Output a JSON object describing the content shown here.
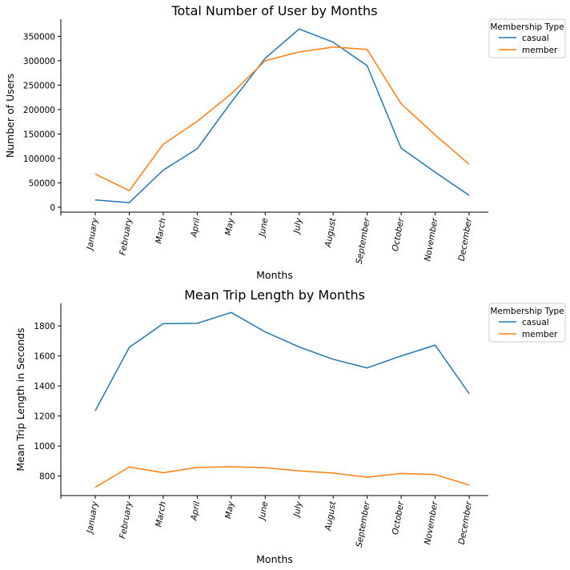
{
  "chart_data": [
    {
      "type": "line",
      "title": "Total Number of User by Months",
      "xlabel": "Months",
      "ylabel": "Number of Users",
      "categories": [
        "January",
        "February",
        "March",
        "April",
        "May",
        "June",
        "July",
        "August",
        "September",
        "October",
        "November",
        "December"
      ],
      "ylim": [
        -10000,
        385000
      ],
      "yticks": [
        0,
        50000,
        100000,
        150000,
        200000,
        250000,
        300000,
        350000
      ],
      "legend": {
        "title": "Membership Type",
        "placement": "outside-top-right"
      },
      "grid": false,
      "series": [
        {
          "name": "casual",
          "color": "#1f77b4",
          "values": [
            15000,
            9500,
            76000,
            120000,
            215000,
            305000,
            365000,
            338000,
            290000,
            121000,
            72000,
            24500
          ]
        },
        {
          "name": "member",
          "color": "#ff7f0e",
          "values": [
            68000,
            34000,
            129000,
            176000,
            232000,
            300000,
            318000,
            328000,
            323000,
            212000,
            148000,
            88000
          ]
        }
      ]
    },
    {
      "type": "line",
      "title": "Mean Trip Length by Months",
      "xlabel": "Months",
      "ylabel": "Mean Trip Length in Seconds",
      "categories": [
        "January",
        "February",
        "March",
        "April",
        "May",
        "June",
        "July",
        "August",
        "September",
        "October",
        "November",
        "December"
      ],
      "ylim": [
        670,
        1950
      ],
      "yticks": [
        800,
        1000,
        1200,
        1400,
        1600,
        1800
      ],
      "legend": {
        "title": "Membership Type",
        "placement": "outside-top-right"
      },
      "grid": false,
      "series": [
        {
          "name": "casual",
          "color": "#1f77b4",
          "values": [
            1235,
            1657,
            1815,
            1817,
            1890,
            1760,
            1660,
            1578,
            1520,
            1600,
            1672,
            1350
          ]
        },
        {
          "name": "member",
          "color": "#ff7f0e",
          "values": [
            725,
            860,
            822,
            857,
            862,
            855,
            835,
            820,
            792,
            817,
            810,
            740
          ]
        }
      ]
    }
  ]
}
